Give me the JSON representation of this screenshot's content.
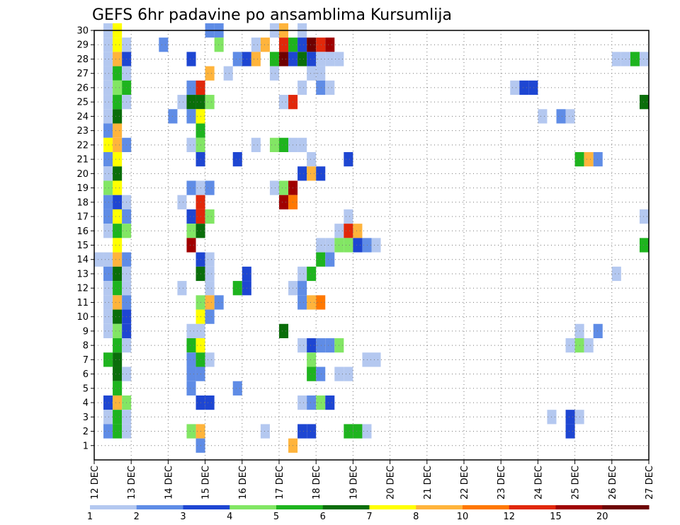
{
  "chart_data": {
    "type": "heatmap",
    "title": "GEFS 6hr padavine po ansamblima Kursumlija",
    "xlabel": "",
    "ylabel": "",
    "x_ticks": [
      "12 DEC",
      "13 DEC",
      "14 DEC",
      "15 DEC",
      "16 DEC",
      "17 DEC",
      "18 DEC",
      "19 DEC",
      "20 DEC",
      "21 DEC",
      "22 DEC",
      "23 DEC",
      "24 DEC",
      "25 DEC",
      "26 DEC",
      "27 DEC"
    ],
    "x_range": [
      12,
      27
    ],
    "y_ticks": [
      1,
      2,
      3,
      4,
      5,
      6,
      7,
      8,
      9,
      10,
      11,
      12,
      13,
      14,
      15,
      16,
      17,
      18,
      19,
      20,
      21,
      22,
      23,
      24,
      25,
      26,
      27,
      28,
      29,
      30
    ],
    "y_range": [
      0,
      30
    ],
    "grid": true,
    "cell_step_hours": 6,
    "colorbar": {
      "labels": [
        "1",
        "2",
        "3",
        "4",
        "5",
        "6",
        "7",
        "8",
        "10",
        "12",
        "15",
        "20"
      ],
      "colors": [
        "#b4c8f0",
        "#5f8ce6",
        "#1e46d2",
        "#82e664",
        "#1eb41e",
        "#0a6e0a",
        "#ffff00",
        "#ffb43c",
        "#ff7800",
        "#e1280a",
        "#a00000",
        "#6e0000"
      ]
    },
    "cells": [
      [
        30,
        12.25,
        0
      ],
      [
        30,
        12.5,
        6
      ],
      [
        30,
        15.0,
        1
      ],
      [
        30,
        15.25,
        1
      ],
      [
        30,
        16.75,
        0
      ],
      [
        30,
        17.0,
        7
      ],
      [
        30,
        17.5,
        0
      ],
      [
        29,
        12.25,
        0
      ],
      [
        29,
        12.5,
        6
      ],
      [
        29,
        12.75,
        0
      ],
      [
        29,
        13.75,
        1
      ],
      [
        29,
        15.25,
        3
      ],
      [
        29,
        16.25,
        0
      ],
      [
        29,
        16.5,
        7
      ],
      [
        29,
        17.0,
        9
      ],
      [
        29,
        17.25,
        4
      ],
      [
        29,
        17.5,
        2
      ],
      [
        29,
        17.75,
        11
      ],
      [
        29,
        18.0,
        9
      ],
      [
        29,
        18.25,
        10
      ],
      [
        28,
        12.25,
        0
      ],
      [
        28,
        12.5,
        7
      ],
      [
        28,
        12.75,
        2
      ],
      [
        28,
        14.5,
        2
      ],
      [
        28,
        15.75,
        1
      ],
      [
        28,
        16.0,
        2
      ],
      [
        28,
        16.25,
        7
      ],
      [
        28,
        16.75,
        4
      ],
      [
        28,
        17.0,
        11
      ],
      [
        28,
        17.25,
        2
      ],
      [
        28,
        17.5,
        5
      ],
      [
        28,
        17.75,
        2
      ],
      [
        28,
        18.0,
        0
      ],
      [
        28,
        18.25,
        0
      ],
      [
        28,
        18.5,
        0
      ],
      [
        28,
        26.0,
        0
      ],
      [
        28,
        26.25,
        0
      ],
      [
        28,
        26.5,
        4
      ],
      [
        28,
        26.75,
        0
      ],
      [
        27,
        12.25,
        0
      ],
      [
        27,
        12.5,
        4
      ],
      [
        27,
        12.75,
        0
      ],
      [
        27,
        15.0,
        7
      ],
      [
        27,
        15.5,
        0
      ],
      [
        27,
        16.75,
        0
      ],
      [
        27,
        17.75,
        0
      ],
      [
        27,
        18.0,
        0
      ],
      [
        26,
        12.25,
        0
      ],
      [
        26,
        12.5,
        3
      ],
      [
        26,
        12.75,
        4
      ],
      [
        26,
        14.5,
        1
      ],
      [
        26,
        14.75,
        9
      ],
      [
        26,
        17.5,
        0
      ],
      [
        26,
        18.0,
        1
      ],
      [
        26,
        18.25,
        0
      ],
      [
        26,
        23.25,
        0
      ],
      [
        26,
        23.5,
        2
      ],
      [
        26,
        23.75,
        2
      ],
      [
        25,
        12.25,
        0
      ],
      [
        25,
        12.5,
        4
      ],
      [
        25,
        12.75,
        0
      ],
      [
        25,
        14.25,
        0
      ],
      [
        25,
        14.5,
        5
      ],
      [
        25,
        14.75,
        5
      ],
      [
        25,
        15.0,
        3
      ],
      [
        25,
        17.0,
        0
      ],
      [
        25,
        17.25,
        9
      ],
      [
        25,
        26.75,
        5
      ],
      [
        24,
        12.25,
        0
      ],
      [
        24,
        12.5,
        5
      ],
      [
        24,
        14.0,
        1
      ],
      [
        24,
        14.5,
        1
      ],
      [
        24,
        14.75,
        6
      ],
      [
        24,
        24.0,
        0
      ],
      [
        24,
        24.5,
        1
      ],
      [
        24,
        24.75,
        0
      ],
      [
        23,
        12.25,
        1
      ],
      [
        23,
        12.5,
        7
      ],
      [
        23,
        14.75,
        4
      ],
      [
        22,
        12.25,
        6
      ],
      [
        22,
        12.5,
        7
      ],
      [
        22,
        12.75,
        1
      ],
      [
        22,
        14.5,
        0
      ],
      [
        22,
        14.75,
        3
      ],
      [
        22,
        16.25,
        0
      ],
      [
        22,
        16.75,
        3
      ],
      [
        22,
        17.0,
        4
      ],
      [
        22,
        17.25,
        0
      ],
      [
        22,
        17.5,
        0
      ],
      [
        21,
        12.25,
        1
      ],
      [
        21,
        12.5,
        6
      ],
      [
        21,
        14.75,
        2
      ],
      [
        21,
        15.75,
        2
      ],
      [
        21,
        17.75,
        0
      ],
      [
        21,
        18.75,
        2
      ],
      [
        21,
        25.0,
        4
      ],
      [
        21,
        25.25,
        7
      ],
      [
        21,
        25.5,
        1
      ],
      [
        20,
        12.25,
        0
      ],
      [
        20,
        12.5,
        5
      ],
      [
        20,
        17.5,
        2
      ],
      [
        20,
        17.75,
        7
      ],
      [
        20,
        18.0,
        2
      ],
      [
        19,
        12.25,
        3
      ],
      [
        19,
        12.5,
        6
      ],
      [
        19,
        14.5,
        1
      ],
      [
        19,
        14.75,
        0
      ],
      [
        19,
        15.0,
        1
      ],
      [
        19,
        16.75,
        0
      ],
      [
        19,
        17.0,
        3
      ],
      [
        19,
        17.25,
        10
      ],
      [
        18,
        12.25,
        1
      ],
      [
        18,
        12.5,
        2
      ],
      [
        18,
        12.75,
        0
      ],
      [
        18,
        14.25,
        0
      ],
      [
        18,
        14.75,
        9
      ],
      [
        18,
        17.0,
        10
      ],
      [
        18,
        17.25,
        8
      ],
      [
        17,
        12.25,
        1
      ],
      [
        17,
        12.5,
        6
      ],
      [
        17,
        12.75,
        1
      ],
      [
        17,
        14.5,
        2
      ],
      [
        17,
        14.75,
        9
      ],
      [
        17,
        15.0,
        3
      ],
      [
        17,
        18.75,
        0
      ],
      [
        17,
        26.75,
        0
      ],
      [
        16,
        12.25,
        0
      ],
      [
        16,
        12.5,
        4
      ],
      [
        16,
        12.75,
        3
      ],
      [
        16,
        14.5,
        3
      ],
      [
        16,
        14.75,
        5
      ],
      [
        16,
        18.5,
        0
      ],
      [
        16,
        18.75,
        9
      ],
      [
        16,
        19.0,
        7
      ],
      [
        15,
        12.5,
        6
      ],
      [
        15,
        14.5,
        10
      ],
      [
        15,
        18.0,
        0
      ],
      [
        15,
        18.25,
        0
      ],
      [
        15,
        18.5,
        3
      ],
      [
        15,
        18.75,
        3
      ],
      [
        15,
        19.0,
        2
      ],
      [
        15,
        19.25,
        1
      ],
      [
        15,
        19.5,
        0
      ],
      [
        15,
        26.75,
        4
      ],
      [
        14,
        12.0,
        0
      ],
      [
        14,
        12.25,
        0
      ],
      [
        14,
        12.5,
        7
      ],
      [
        14,
        12.75,
        1
      ],
      [
        14,
        14.75,
        2
      ],
      [
        14,
        15.0,
        0
      ],
      [
        14,
        18.0,
        4
      ],
      [
        14,
        18.25,
        1
      ],
      [
        13,
        12.25,
        1
      ],
      [
        13,
        12.5,
        5
      ],
      [
        13,
        12.75,
        0
      ],
      [
        13,
        14.75,
        5
      ],
      [
        13,
        15.0,
        0
      ],
      [
        13,
        16.0,
        2
      ],
      [
        13,
        17.5,
        0
      ],
      [
        13,
        17.75,
        4
      ],
      [
        13,
        26.0,
        0
      ],
      [
        12,
        12.25,
        0
      ],
      [
        12,
        12.5,
        4
      ],
      [
        12,
        12.75,
        0
      ],
      [
        12,
        14.25,
        0
      ],
      [
        12,
        15.0,
        0
      ],
      [
        12,
        15.75,
        4
      ],
      [
        12,
        16.0,
        2
      ],
      [
        12,
        17.25,
        0
      ],
      [
        12,
        17.5,
        1
      ],
      [
        11,
        12.25,
        0
      ],
      [
        11,
        12.5,
        7
      ],
      [
        11,
        12.75,
        1
      ],
      [
        11,
        14.75,
        3
      ],
      [
        11,
        15.0,
        7
      ],
      [
        11,
        15.25,
        1
      ],
      [
        11,
        17.5,
        1
      ],
      [
        11,
        17.75,
        7
      ],
      [
        11,
        18.0,
        8
      ],
      [
        10,
        12.25,
        0
      ],
      [
        10,
        12.5,
        5
      ],
      [
        10,
        12.75,
        2
      ],
      [
        10,
        14.75,
        6
      ],
      [
        10,
        15.0,
        1
      ],
      [
        9,
        12.25,
        0
      ],
      [
        9,
        12.5,
        3
      ],
      [
        9,
        12.75,
        2
      ],
      [
        9,
        14.5,
        0
      ],
      [
        9,
        14.75,
        0
      ],
      [
        9,
        17.0,
        5
      ],
      [
        9,
        25.0,
        0
      ],
      [
        9,
        25.5,
        1
      ],
      [
        8,
        12.5,
        4
      ],
      [
        8,
        12.75,
        0
      ],
      [
        8,
        14.5,
        4
      ],
      [
        8,
        14.75,
        6
      ],
      [
        8,
        17.5,
        0
      ],
      [
        8,
        17.75,
        2
      ],
      [
        8,
        18.0,
        1
      ],
      [
        8,
        18.25,
        1
      ],
      [
        8,
        18.5,
        3
      ],
      [
        8,
        24.75,
        0
      ],
      [
        8,
        25.0,
        3
      ],
      [
        8,
        25.25,
        0
      ],
      [
        7,
        12.25,
        4
      ],
      [
        7,
        12.5,
        5
      ],
      [
        7,
        14.5,
        1
      ],
      [
        7,
        14.75,
        4
      ],
      [
        7,
        15.0,
        0
      ],
      [
        7,
        17.75,
        3
      ],
      [
        7,
        19.25,
        0
      ],
      [
        7,
        19.5,
        0
      ],
      [
        6,
        12.5,
        5
      ],
      [
        6,
        12.75,
        0
      ],
      [
        6,
        14.5,
        1
      ],
      [
        6,
        14.75,
        1
      ],
      [
        6,
        17.75,
        4
      ],
      [
        6,
        18.0,
        1
      ],
      [
        6,
        18.5,
        0
      ],
      [
        6,
        18.75,
        0
      ],
      [
        5,
        12.5,
        4
      ],
      [
        5,
        14.5,
        1
      ],
      [
        5,
        15.75,
        1
      ],
      [
        4,
        12.25,
        2
      ],
      [
        4,
        12.5,
        7
      ],
      [
        4,
        12.75,
        3
      ],
      [
        4,
        14.75,
        2
      ],
      [
        4,
        15.0,
        2
      ],
      [
        4,
        17.5,
        0
      ],
      [
        4,
        17.75,
        1
      ],
      [
        4,
        18.0,
        3
      ],
      [
        4,
        18.25,
        2
      ],
      [
        3,
        12.25,
        0
      ],
      [
        3,
        12.5,
        4
      ],
      [
        3,
        12.75,
        0
      ],
      [
        3,
        24.25,
        0
      ],
      [
        3,
        24.75,
        2
      ],
      [
        3,
        25.0,
        0
      ],
      [
        2,
        12.25,
        1
      ],
      [
        2,
        12.5,
        4
      ],
      [
        2,
        12.75,
        0
      ],
      [
        2,
        14.5,
        3
      ],
      [
        2,
        14.75,
        7
      ],
      [
        2,
        16.5,
        0
      ],
      [
        2,
        17.5,
        2
      ],
      [
        2,
        17.75,
        2
      ],
      [
        2,
        18.75,
        4
      ],
      [
        2,
        19.0,
        4
      ],
      [
        2,
        19.25,
        0
      ],
      [
        2,
        24.75,
        2
      ],
      [
        1,
        14.75,
        1
      ],
      [
        1,
        17.25,
        7
      ]
    ]
  }
}
